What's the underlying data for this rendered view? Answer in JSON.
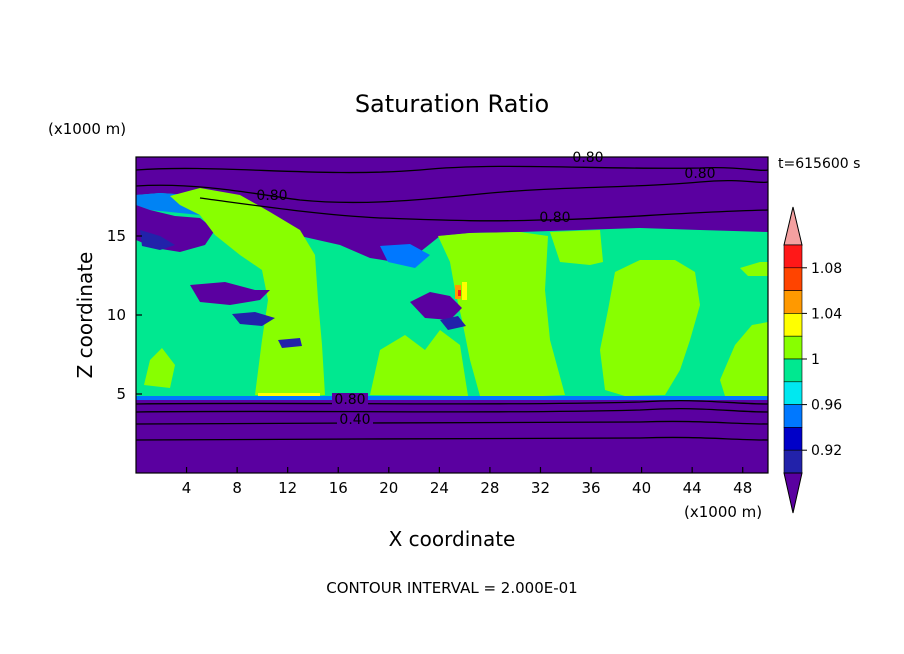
{
  "chart_data": {
    "type": "heatmap",
    "title": "Saturation Ratio",
    "xlabel": "X coordinate",
    "ylabel": "Z coordinate",
    "x_unit": "(x1000 m)",
    "y_unit": "(x1000 m)",
    "time_label": "t=615600 s",
    "footer": "CONTOUR INTERVAL = 2.000E-01",
    "xlim": [
      0,
      50
    ],
    "ylim": [
      0,
      20
    ],
    "x_ticks": [
      4,
      8,
      12,
      16,
      20,
      24,
      28,
      32,
      36,
      40,
      44,
      48
    ],
    "y_ticks": [
      5,
      10,
      15
    ],
    "colorbar": {
      "levels": [
        0.92,
        0.94,
        0.96,
        0.98,
        1.0,
        1.02,
        1.04,
        1.06,
        1.08,
        1.1
      ],
      "tick_labels": [
        "0.92",
        "0.96",
        "1",
        "1.04",
        "1.08"
      ],
      "colors": [
        "#5a00a0",
        "#2222aa",
        "#0000c8",
        "#0078ff",
        "#00e8f0",
        "#00e890",
        "#88ff00",
        "#ffff00",
        "#ff9900",
        "#ff4400",
        "#ff1818",
        "#f4a0a0"
      ]
    },
    "contour_labels": [
      "0.80",
      "0.80",
      "0.80",
      "0.80",
      "0.80",
      "0.40"
    ]
  }
}
